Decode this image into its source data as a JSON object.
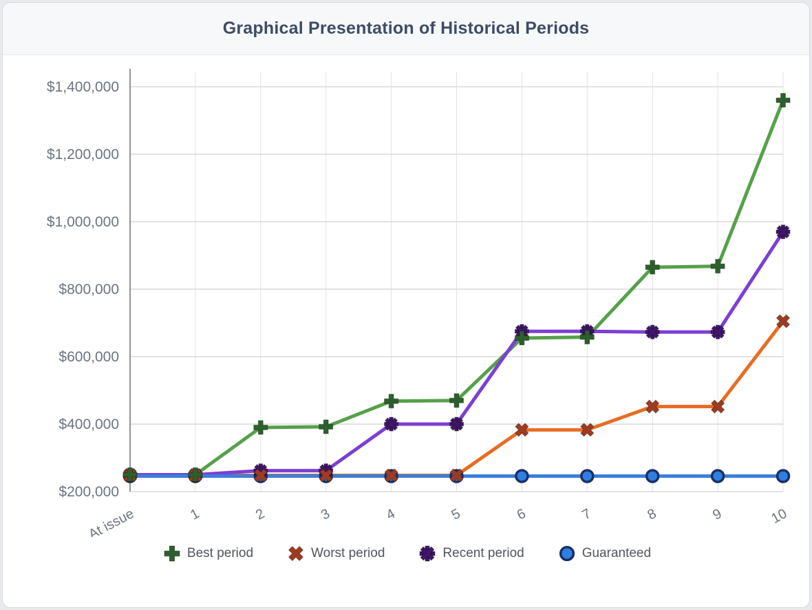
{
  "header": {
    "title": "Graphical Presentation of Historical Periods"
  },
  "chart_data": {
    "type": "line",
    "title": "Graphical Presentation of Historical Periods",
    "categories": [
      "At issue",
      "1",
      "2",
      "3",
      "4",
      "5",
      "6",
      "7",
      "8",
      "9",
      "10"
    ],
    "xlabel": "",
    "ylabel": "",
    "grid": true,
    "legend_position": "bottom",
    "y_axis": {
      "min": 200000,
      "max": 1400000,
      "step": 200000,
      "tick_labels": [
        "$200,000",
        "$400,000",
        "$600,000",
        "$800,000",
        "$1,000,000",
        "$1,200,000",
        "$1,400,000"
      ]
    },
    "series": [
      {
        "name": "Best period",
        "marker": "plus",
        "line_color": "#56a04a",
        "marker_color": "#2d5f2d",
        "values": [
          250000,
          250000,
          390000,
          392000,
          468000,
          470000,
          655000,
          658000,
          865000,
          868000,
          1360000
        ]
      },
      {
        "name": "Worst period",
        "marker": "x",
        "line_color": "#e86c24",
        "marker_color": "#9e3b23",
        "values": [
          248000,
          248000,
          248000,
          248000,
          248000,
          248000,
          383000,
          383000,
          452000,
          452000,
          705000
        ]
      },
      {
        "name": "Recent period",
        "marker": "asterisk",
        "line_color": "#7c3fd4",
        "marker_color": "#3f1668",
        "values": [
          250000,
          250000,
          262000,
          262000,
          400000,
          400000,
          675000,
          675000,
          673000,
          673000,
          970000
        ]
      },
      {
        "name": "Guaranteed",
        "marker": "circle",
        "line_color": "#3d7edb",
        "marker_color": "#2f7fe0",
        "marker_stroke": "#1a2f66",
        "values": [
          246000,
          246000,
          246000,
          246000,
          246000,
          246000,
          246000,
          246000,
          246000,
          246000,
          246000
        ]
      }
    ]
  }
}
